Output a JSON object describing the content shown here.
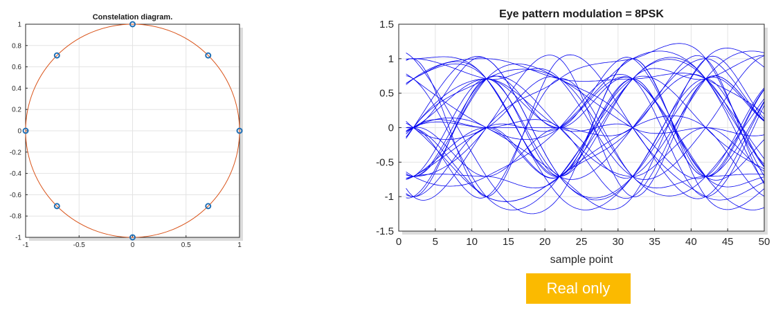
{
  "badge": {
    "label": "Real only",
    "color": "#fbba00"
  },
  "chart_data": [
    {
      "type": "scatter",
      "title": "Constelation diagram.",
      "xlabel": "",
      "ylabel": "",
      "xlim": [
        -1,
        1
      ],
      "ylim": [
        -1,
        1
      ],
      "xticks": [
        "-1",
        "-0.5",
        "0",
        "0.5",
        "1"
      ],
      "yticks": [
        "-1",
        "-0.8",
        "-0.6",
        "-0.4",
        "-0.2",
        "0",
        "0.2",
        "0.4",
        "0.6",
        "0.8",
        "1"
      ],
      "grid": true,
      "points": [
        {
          "x": 1,
          "y": 0
        },
        {
          "x": 0.707,
          "y": 0.707
        },
        {
          "x": 0,
          "y": 1
        },
        {
          "x": -0.707,
          "y": 0.707
        },
        {
          "x": -1,
          "y": 0
        },
        {
          "x": -0.707,
          "y": -0.707
        },
        {
          "x": 0,
          "y": -1
        },
        {
          "x": 0.707,
          "y": -0.707
        }
      ],
      "circle_radius": 1,
      "colors": {
        "points": "#1f6fb5",
        "circle": "#d95319"
      }
    },
    {
      "type": "line",
      "title": "Eye pattern modulation = 8PSK",
      "xlabel": "sample point",
      "ylabel": "",
      "xlim": [
        0,
        50
      ],
      "ylim": [
        -1.5,
        1.5
      ],
      "xticks": [
        "0",
        "5",
        "10",
        "15",
        "20",
        "25",
        "30",
        "35",
        "40",
        "45",
        "50"
      ],
      "yticks": [
        "-1.5",
        "-1",
        "-0.5",
        "0",
        "0.5",
        "1",
        "1.5"
      ],
      "grid": true,
      "symbol_levels": [
        -1,
        -0.707,
        0,
        0.707,
        1
      ],
      "symbol_times": [
        2,
        12,
        22,
        32,
        42
      ],
      "color": "#0000ee"
    }
  ]
}
